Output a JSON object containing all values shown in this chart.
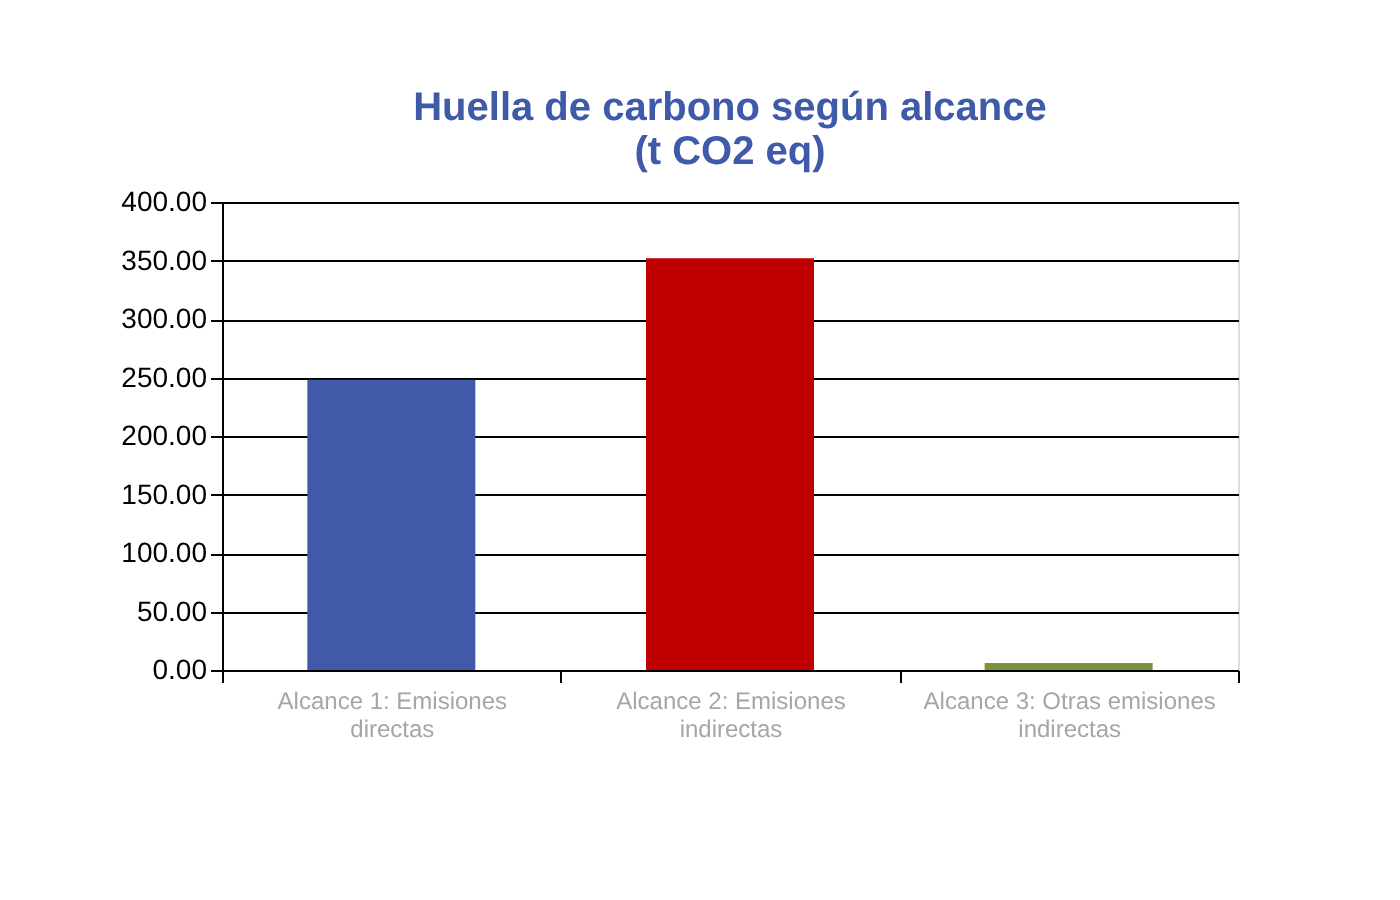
{
  "chart_data": {
    "type": "bar",
    "title": "Huella de carbono según alcance (t CO2 eq)",
    "categories": [
      "Alcance 1: Emisiones directas",
      "Alcance 2: Emisiones indirectas",
      "Alcance 3: Otras emisiones indirectas"
    ],
    "values": [
      248,
      352,
      6
    ],
    "colors": [
      "#405aa8",
      "#c00000",
      "#77933c"
    ],
    "ylim": [
      0,
      400
    ],
    "yticks": [
      {
        "value": 0,
        "label": "0.00"
      },
      {
        "value": 50,
        "label": "50.00"
      },
      {
        "value": 100,
        "label": "100.00"
      },
      {
        "value": 150,
        "label": "150.00"
      },
      {
        "value": 200,
        "label": "200.00"
      },
      {
        "value": 250,
        "label": "250.00"
      },
      {
        "value": 300,
        "label": "300.00"
      },
      {
        "value": 350,
        "label": "350.00"
      },
      {
        "value": 400,
        "label": "400.00"
      }
    ],
    "grid": "y"
  }
}
